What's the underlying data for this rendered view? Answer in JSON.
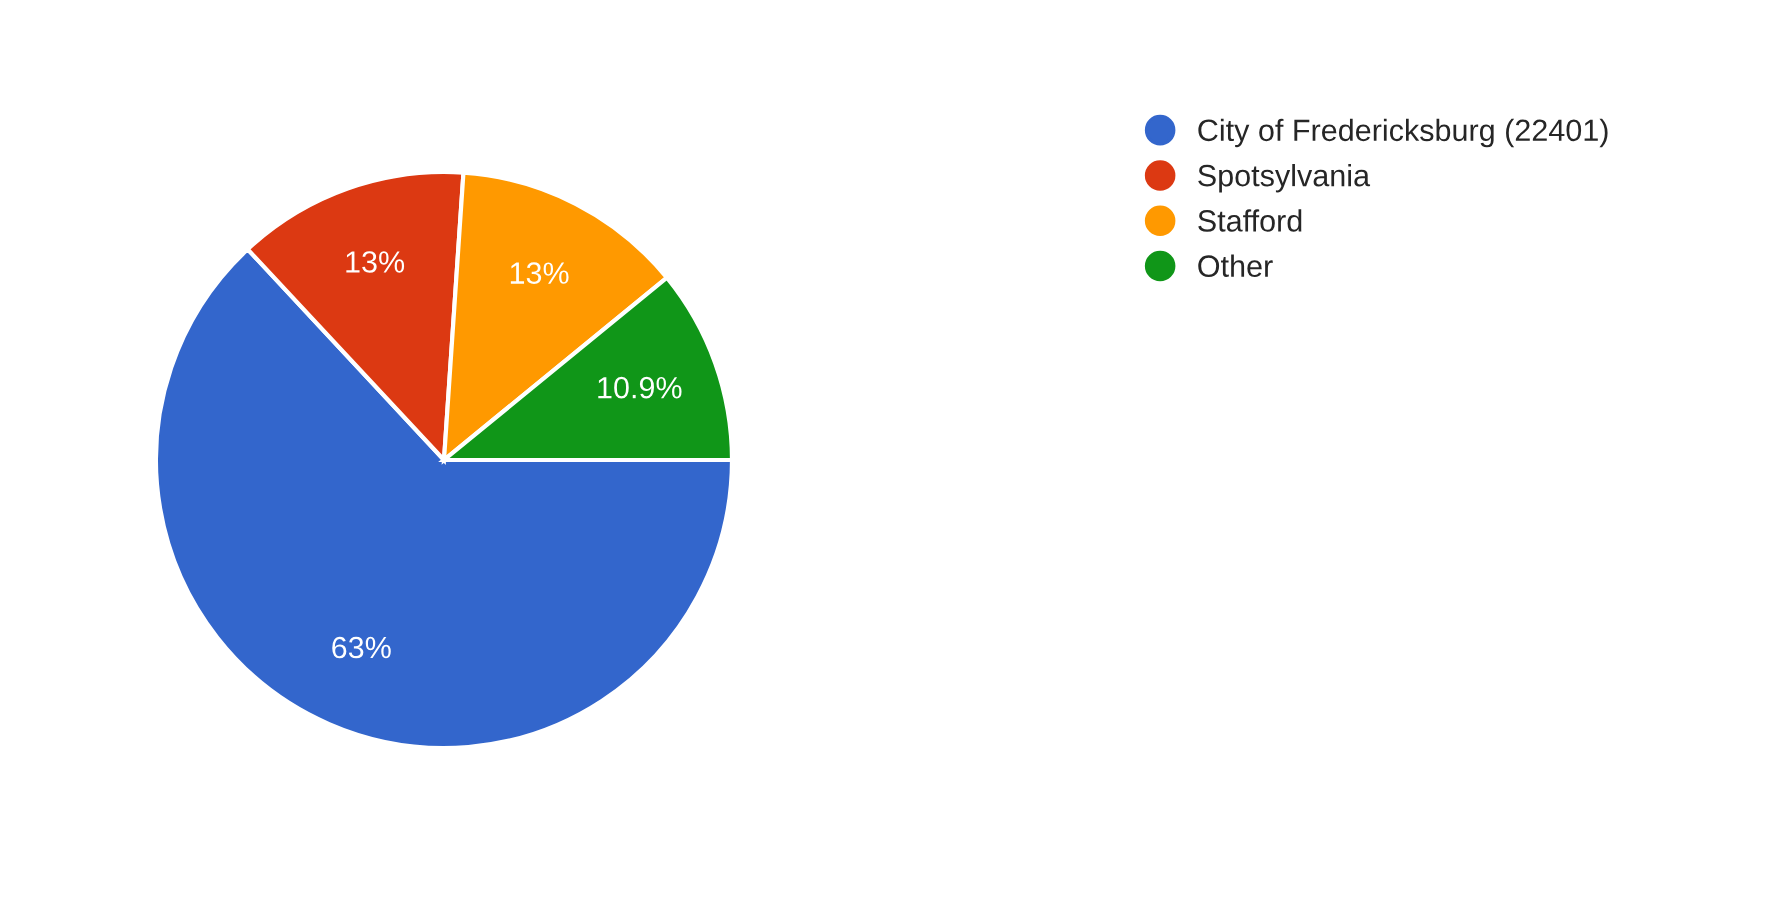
{
  "chart_data": {
    "type": "pie",
    "categories": [
      "City of Fredericksburg (22401)",
      "Spotsylvania",
      "Stafford",
      "Other"
    ],
    "values": [
      63,
      13,
      13,
      10.9
    ],
    "value_labels": [
      "63%",
      "13%",
      "13%",
      "10.9%"
    ],
    "colors": [
      "#3366cc",
      "#dc3912",
      "#ff9900",
      "#109618"
    ],
    "legend": "right"
  }
}
